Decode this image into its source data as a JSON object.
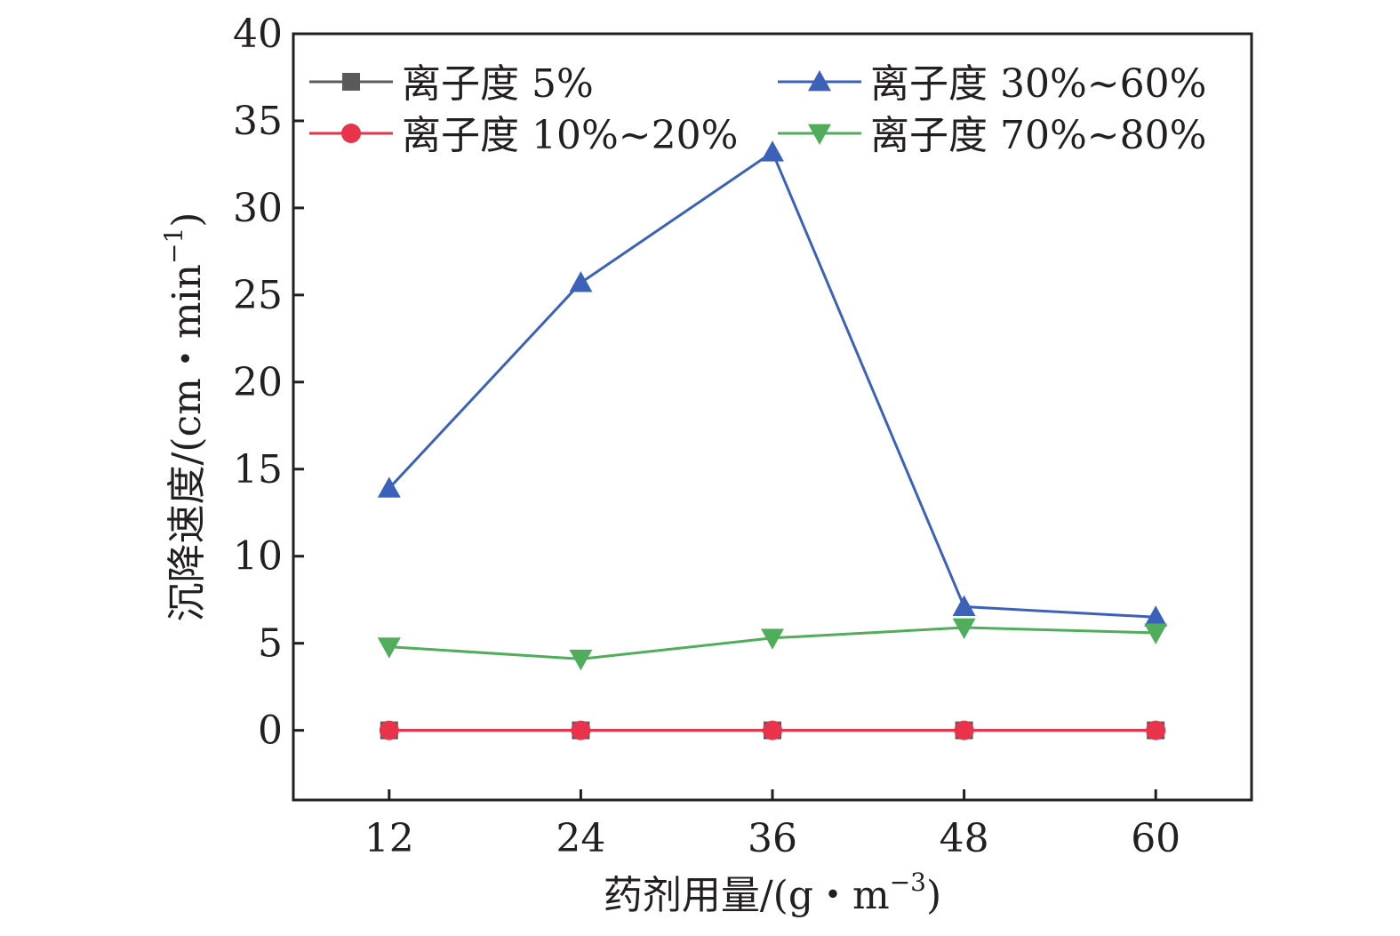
{
  "chart_data": {
    "type": "line",
    "xlabel": "药剂用量/(g・m",
    "xlabel_sup": "−3",
    "xlabel_tail": ")",
    "ylabel": "沉降速度/(cm・min",
    "ylabel_sup": "−1",
    "ylabel_tail": ")",
    "x": [
      12,
      24,
      36,
      48,
      60
    ],
    "xticks": [
      "12",
      "24",
      "36",
      "48",
      "60"
    ],
    "yticks": [
      0,
      5,
      10,
      15,
      20,
      25,
      30,
      35,
      40
    ],
    "ylim": [
      -4,
      40
    ],
    "xlim": [
      6,
      66
    ],
    "legend_position": "top",
    "series": [
      {
        "name": "离子度 5%",
        "values": [
          0,
          0,
          0,
          0,
          0
        ],
        "color": "#5a5a5a",
        "marker": "square"
      },
      {
        "name": "离子度 10%~20%",
        "values": [
          0,
          0,
          0,
          0,
          0
        ],
        "color": "#e8334a",
        "marker": "circle"
      },
      {
        "name": "离子度 30%~60%",
        "values": [
          13.9,
          25.7,
          33.2,
          7.1,
          6.5
        ],
        "color": "#3b62b8",
        "marker": "triangle-up"
      },
      {
        "name": "离子度 70%~80%",
        "values": [
          4.8,
          4.1,
          5.3,
          5.9,
          5.6
        ],
        "color": "#4fad5b",
        "marker": "triangle-down"
      }
    ]
  }
}
